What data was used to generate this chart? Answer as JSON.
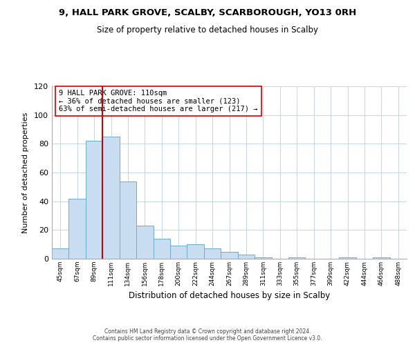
{
  "title": "9, HALL PARK GROVE, SCALBY, SCARBOROUGH, YO13 0RH",
  "subtitle": "Size of property relative to detached houses in Scalby",
  "xlabel": "Distribution of detached houses by size in Scalby",
  "ylabel": "Number of detached properties",
  "bin_labels": [
    "45sqm",
    "67sqm",
    "89sqm",
    "111sqm",
    "134sqm",
    "156sqm",
    "178sqm",
    "200sqm",
    "222sqm",
    "244sqm",
    "267sqm",
    "289sqm",
    "311sqm",
    "333sqm",
    "355sqm",
    "377sqm",
    "399sqm",
    "422sqm",
    "444sqm",
    "466sqm",
    "488sqm"
  ],
  "bar_values": [
    7,
    42,
    82,
    85,
    54,
    23,
    14,
    9,
    10,
    7,
    5,
    3,
    1,
    0,
    1,
    0,
    0,
    1,
    0,
    1,
    0
  ],
  "bar_color": "#c8ddef",
  "bar_edge_color": "#6bacd0",
  "property_line_color": "#cc0000",
  "annotation_text": "9 HALL PARK GROVE: 110sqm\n← 36% of detached houses are smaller (123)\n63% of semi-detached houses are larger (217) →",
  "annotation_box_edge": "#cc0000",
  "ylim": [
    0,
    120
  ],
  "yticks": [
    0,
    20,
    40,
    60,
    80,
    100,
    120
  ],
  "footer_text": "Contains HM Land Registry data © Crown copyright and database right 2024.\nContains public sector information licensed under the Open Government Licence v3.0.",
  "bg_color": "#ffffff",
  "grid_color": "#c8d8e8"
}
